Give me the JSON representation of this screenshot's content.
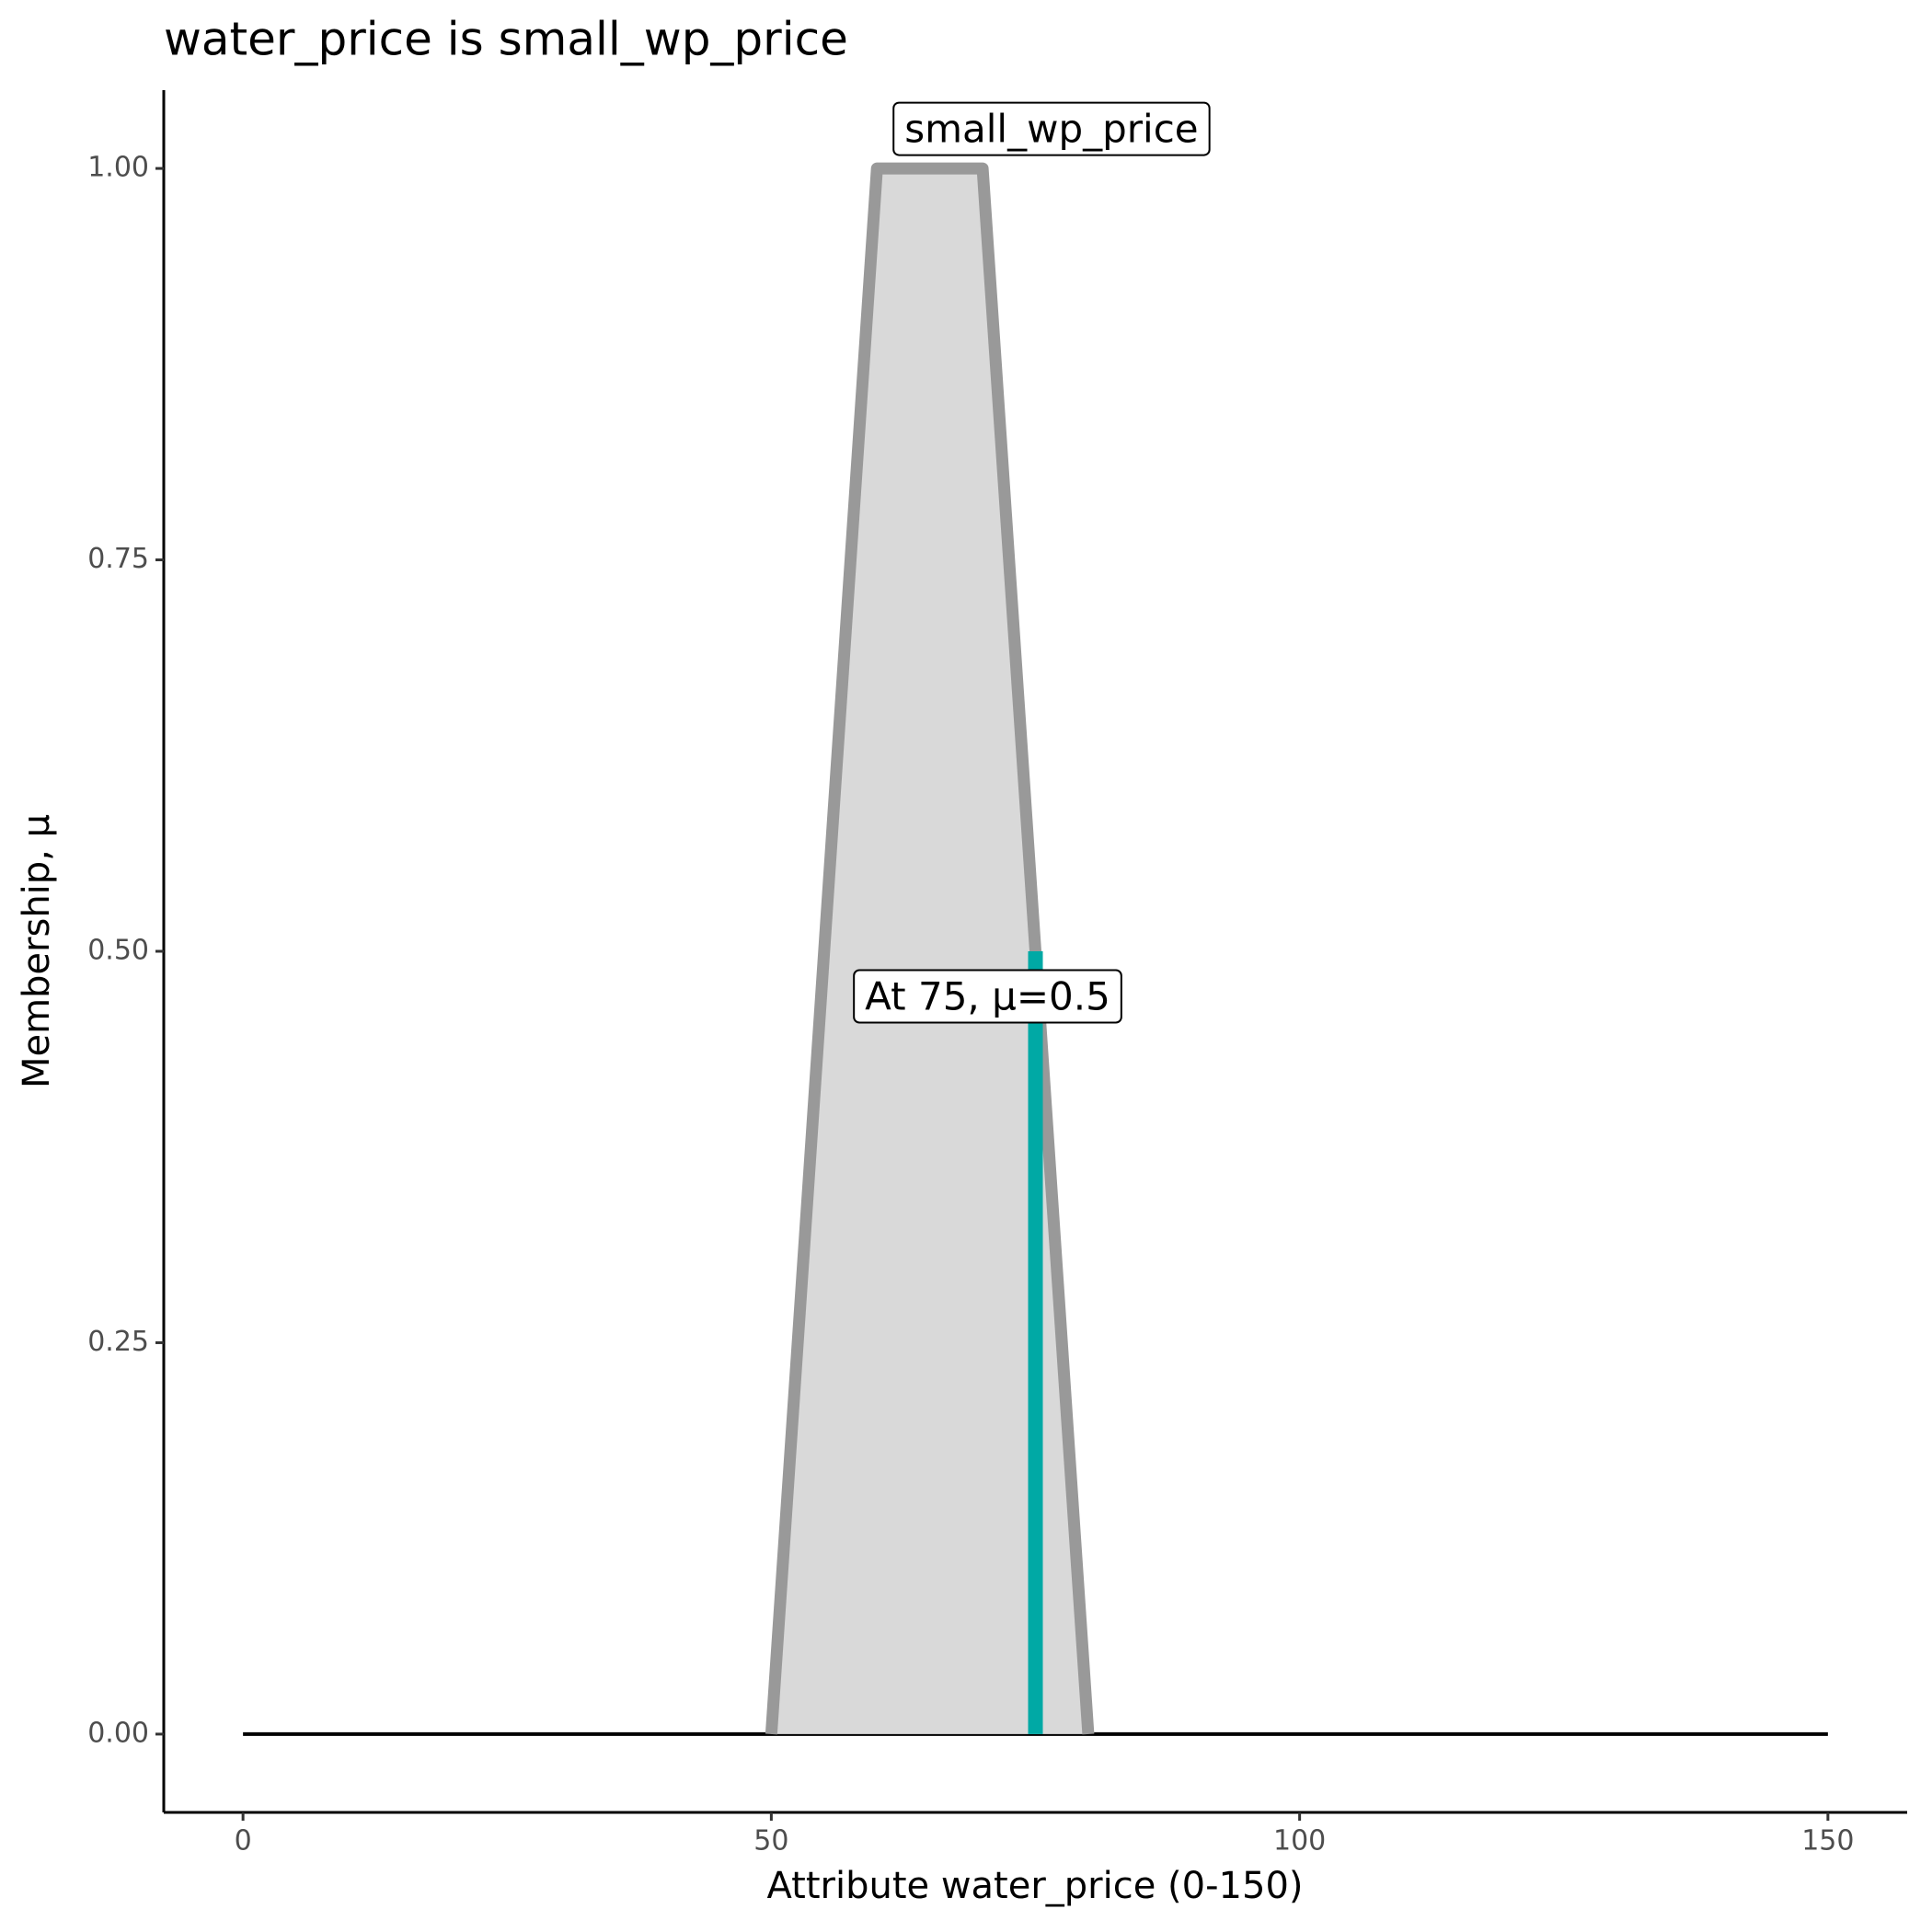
{
  "chart_data": {
    "type": "area",
    "title": "water_price is small_wp_price",
    "x_label": "Attribute water_price (0-150)",
    "y_label": "Membership, μ",
    "x": [
      0,
      50,
      60,
      70,
      80,
      150
    ],
    "series": [
      {
        "name": "small_wp_price",
        "color": "#999999",
        "fill": "#d9d9d9",
        "values": [
          0,
          0,
          1,
          1,
          0,
          0
        ]
      }
    ],
    "marker": {
      "x": 75,
      "value": 0.5,
      "color": "#00a9a5",
      "label": "At 75, μ=0.5"
    },
    "xlim": [
      -7.5,
      157.5
    ],
    "ylim": [
      -0.05,
      1.05
    ],
    "xticks": [
      0,
      50,
      100,
      150
    ],
    "yticks": [
      {
        "value": 0,
        "label": "0.00"
      },
      {
        "value": 0.25,
        "label": "0.25"
      },
      {
        "value": 0.5,
        "label": "0.50"
      },
      {
        "value": 0.75,
        "label": "0.75"
      },
      {
        "value": 1,
        "label": "1.00"
      }
    ]
  }
}
